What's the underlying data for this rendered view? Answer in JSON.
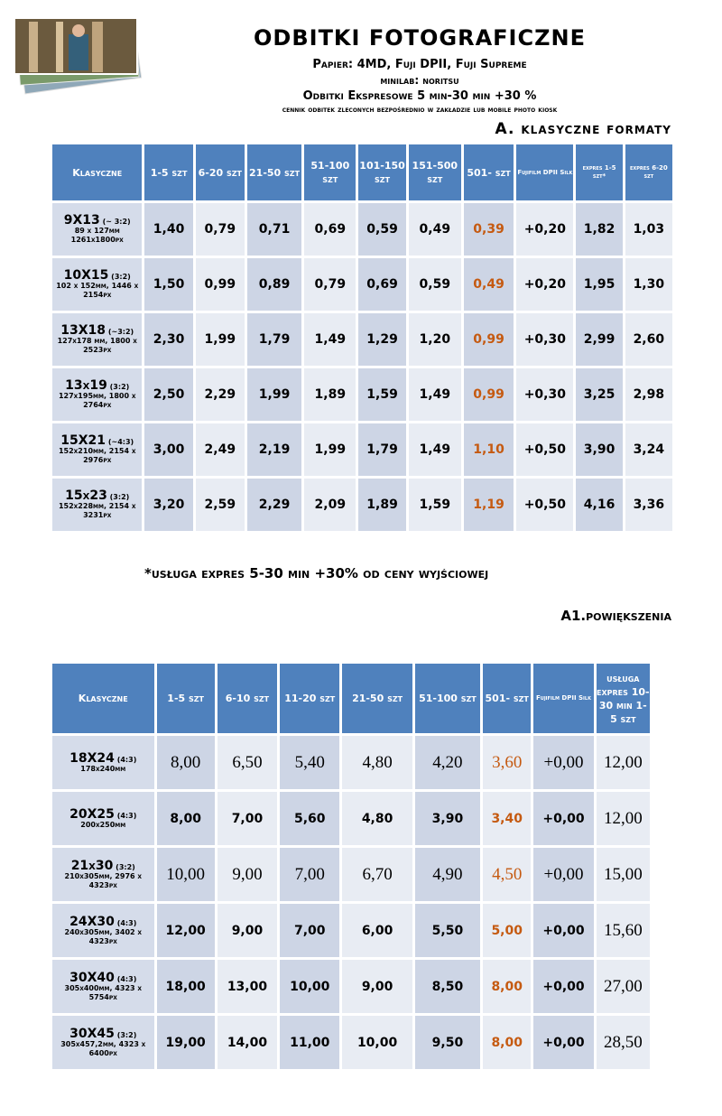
{
  "header": {
    "title": "ODBITKI FOTOGRAFICZNE",
    "lines": [
      "Papier: 4MD, Fuji DPII, Fuji Supreme",
      "minilab: noritsu",
      "Odbitki Ekspresowe 5 min-30 min +30 %",
      "cennik odbitek zleconych bezpośrednio w zakładzie lub mobile photo kiosk"
    ]
  },
  "section_a": {
    "title": "A. klasyczne formaty",
    "columns": [
      "Klasyczne",
      "1-5 szt",
      "6-20 szt",
      "21-50 szt",
      "51-100 szt",
      "101-150 szt",
      "151-500 szt",
      "501- szt",
      "Fujifilm DPII Silk",
      "expres 1-5 szt*",
      "expres 6-20 szt"
    ],
    "rows": [
      {
        "name": "9X13",
        "ratio": "(~ 3:2)",
        "size": "89 x 127mm 1261x1800px",
        "values": [
          "1,40",
          "0,79",
          "0,71",
          "0,69",
          "0,59",
          "0,49",
          "0,39",
          "+0,20",
          "1,82",
          "1,03"
        ]
      },
      {
        "name": "10X15",
        "ratio": "(3:2)",
        "size": "102 x 152mm, 1446 x 2154px",
        "values": [
          "1,50",
          "0,99",
          "0,89",
          "0,79",
          "0,69",
          "0,59",
          "0,49",
          "+0,20",
          "1,95",
          "1,30"
        ]
      },
      {
        "name": "13X18",
        "ratio": "(~3:2)",
        "size": "127x178 mm, 1800 x 2523px",
        "values": [
          "2,30",
          "1,99",
          "1,79",
          "1,49",
          "1,29",
          "1,20",
          "0,99",
          "+0,30",
          "2,99",
          "2,60"
        ]
      },
      {
        "name": "13x19",
        "ratio": "(3:2)",
        "size": "127x195mm, 1800 x 2764px",
        "values": [
          "2,50",
          "2,29",
          "1,99",
          "1,89",
          "1,59",
          "1,49",
          "0,99",
          "+0,30",
          "3,25",
          "2,98"
        ]
      },
      {
        "name": "15X21",
        "ratio": "(~4:3)",
        "size": "152x210mm, 2154 x 2976px",
        "values": [
          "3,00",
          "2,49",
          "2,19",
          "1,99",
          "1,79",
          "1,49",
          "1,10",
          "+0,50",
          "3,90",
          "3,24"
        ]
      },
      {
        "name": "15x23",
        "ratio": "(3:2)",
        "size": "152x228mm, 2154 x 3231px",
        "values": [
          "3,20",
          "2,59",
          "2,29",
          "2,09",
          "1,89",
          "1,59",
          "1,19",
          "+0,50",
          "4,16",
          "3,36"
        ]
      }
    ],
    "footnote": "*usługa expres 5-30 min +30% od ceny wyjściowej"
  },
  "section_a1": {
    "title": "A1.powiększenia",
    "columns": [
      "Klasyczne",
      "1-5 szt",
      "6-10 szt",
      "11-20 szt",
      "21-50 szt",
      "51-100 szt",
      "501- szt",
      "Fujifilm DPII Silk",
      "usługa expres 10-30 min 1-5 szt"
    ],
    "rows": [
      {
        "name": "18X24",
        "ratio": "(4:3)",
        "size": "178x240mm",
        "values": [
          "8,00",
          "6,50",
          "5,40",
          "4,80",
          "4,20",
          "3,60",
          "+0,00",
          "12,00"
        ]
      },
      {
        "name": "20X25",
        "ratio": "(4:3)",
        "size": "200x250mm",
        "values": [
          "8,00",
          "7,00",
          "5,60",
          "4,80",
          "3,90",
          "3,40",
          "+0,00",
          "12,00"
        ]
      },
      {
        "name": "21x30",
        "ratio": "(3:2)",
        "size": "210x305mm, 2976 x 4323px",
        "values": [
          "10,00",
          "9,00",
          "7,00",
          "6,70",
          "4,90",
          "4,50",
          "+0,00",
          "15,00"
        ]
      },
      {
        "name": "24X30",
        "ratio": "(4:3)",
        "size": "240x305mm, 3402 x 4323px",
        "values": [
          "12,00",
          "9,00",
          "7,00",
          "6,00",
          "5,50",
          "5,00",
          "+0,00",
          "15,60"
        ]
      },
      {
        "name": "30X40",
        "ratio": "(4:3)",
        "size": "305x400mm, 4323 x 5754px",
        "values": [
          "18,00",
          "13,00",
          "10,00",
          "9,00",
          "8,50",
          "8,00",
          "+0,00",
          "27,00"
        ]
      },
      {
        "name": "30X45",
        "ratio": "(3:2)",
        "size": "305x457,2mm, 4323 x 6400px",
        "values": [
          "19,00",
          "14,00",
          "11,00",
          "10,00",
          "9,50",
          "8,00",
          "+0,00",
          "28,50"
        ]
      }
    ]
  }
}
